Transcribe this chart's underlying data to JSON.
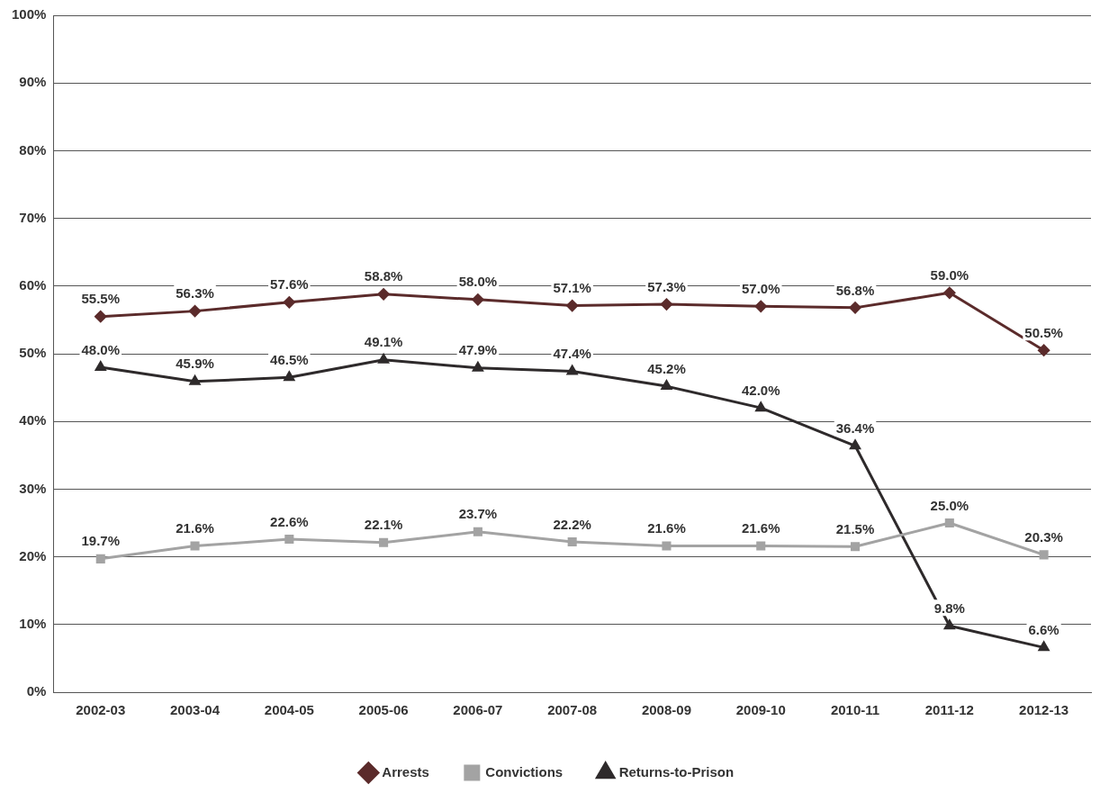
{
  "chart_data": {
    "type": "line",
    "categories": [
      "2002-03",
      "2003-04",
      "2004-05",
      "2005-06",
      "2006-07",
      "2007-08",
      "2008-09",
      "2009-10",
      "2010-11",
      "2011-12",
      "2012-13"
    ],
    "series": [
      {
        "name": "Arrests",
        "color": "#5b2b2b",
        "marker": "diamond",
        "values": [
          55.5,
          56.3,
          57.6,
          58.8,
          58.0,
          57.1,
          57.3,
          57.0,
          56.8,
          59.0,
          50.5
        ],
        "value_labels": [
          "55.5%",
          "56.3%",
          "57.6%",
          "58.8%",
          "58.0%",
          "57.1%",
          "57.3%",
          "57.0%",
          "56.8%",
          "59.0%",
          "50.5%"
        ]
      },
      {
        "name": "Convictions",
        "color": "#a3a3a3",
        "marker": "square",
        "values": [
          19.7,
          21.6,
          22.6,
          22.1,
          23.7,
          22.2,
          21.6,
          21.6,
          21.5,
          25.0,
          20.3
        ],
        "value_labels": [
          "19.7%",
          "21.6%",
          "22.6%",
          "22.1%",
          "23.7%",
          "22.2%",
          "21.6%",
          "21.6%",
          "21.5%",
          "25.0%",
          "20.3%"
        ]
      },
      {
        "name": "Returns-to-Prison",
        "color": "#2e2a2b",
        "marker": "triangle",
        "values": [
          48.0,
          45.9,
          46.5,
          49.1,
          47.9,
          47.4,
          45.2,
          42.0,
          36.4,
          9.8,
          6.6
        ],
        "value_labels": [
          "48.0%",
          "45.9%",
          "46.5%",
          "49.1%",
          "47.9%",
          "47.4%",
          "45.2%",
          "42.0%",
          "36.4%",
          "9.8%",
          "6.6%"
        ]
      }
    ],
    "ylim": [
      0,
      100
    ],
    "yticks": [
      {
        "value": 0,
        "label": "0%"
      },
      {
        "value": 10,
        "label": "10%"
      },
      {
        "value": 20,
        "label": "20%"
      },
      {
        "value": 30,
        "label": "30%"
      },
      {
        "value": 40,
        "label": "40%"
      },
      {
        "value": 50,
        "label": "50%"
      },
      {
        "value": 60,
        "label": "60%"
      },
      {
        "value": 70,
        "label": "70%"
      },
      {
        "value": 80,
        "label": "80%"
      },
      {
        "value": 90,
        "label": "90%"
      },
      {
        "value": 100,
        "label": "100%"
      }
    ],
    "grid": "y",
    "legend": "bottom",
    "line_style": "solid"
  }
}
